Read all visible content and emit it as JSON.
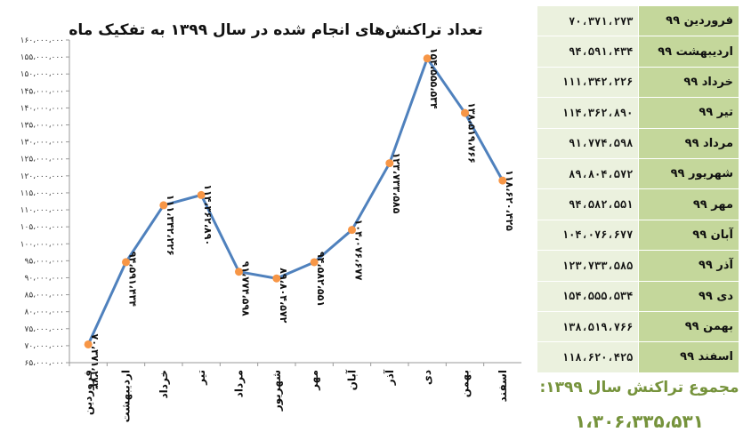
{
  "chart_data": {
    "type": "line",
    "title": "تعداد تراکنش‌های انجام شده در سال ۱۳۹۹ به تفکیک ماه",
    "categories": [
      "فروردین",
      "اردیبهشت",
      "خرداد",
      "تیر",
      "مرداد",
      "شهریور",
      "مهر",
      "آبان",
      "آذر",
      "دی",
      "بهمن",
      "اسفند"
    ],
    "series": [
      {
        "values": [
          70371273,
          94591434,
          111342226,
          114362890,
          91774598,
          89804572,
          94582551,
          104076677,
          123733585,
          154555534,
          138519766,
          118620425
        ]
      }
    ],
    "data_labels": [
      "۷۰،۳۷۱،۲۷۳",
      "۹۴،۵۹۱،۴۳۴",
      "۱۱۱،۳۴۲،۲۲۶",
      "۱۱۴،۳۶۲،۸۹۰",
      "۹۱،۷۷۴،۵۹۸",
      "۸۹،۸۰۴،۵۷۲",
      "۹۴،۵۸۲،۵۵۱",
      "۱۰۴،۰۷۶،۶۷۷",
      "۱۲۳،۷۳۳،۵۸۵",
      "۱۵۴،۵۵۵،۵۳۴",
      "۱۳۸،۵۱۹،۷۶۶",
      "۱۱۸،۶۲۰،۴۲۵"
    ],
    "ylim": [
      65000000,
      160000000
    ],
    "yticks": [
      65000000,
      70000000,
      75000000,
      80000000,
      85000000,
      90000000,
      95000000,
      100000000,
      105000000,
      110000000,
      115000000,
      120000000,
      125000000,
      130000000,
      135000000,
      140000000,
      145000000,
      150000000,
      155000000,
      160000000
    ],
    "ytick_labels": [
      "۶۵،۰۰۰،۰۰۰",
      "۷۰،۰۰۰،۰۰۰",
      "۷۵،۰۰۰،۰۰۰",
      "۸۰،۰۰۰،۰۰۰",
      "۸۵،۰۰۰،۰۰۰",
      "۹۰،۰۰۰،۰۰۰",
      "۹۵،۰۰۰،۰۰۰",
      "۱۰۰،۰۰۰،۰۰۰",
      "۱۰۵،۰۰۰،۰۰۰",
      "۱۱۰،۰۰۰،۰۰۰",
      "۱۱۵،۰۰۰،۰۰۰",
      "۱۲۰،۰۰۰،۰۰۰",
      "۱۲۵،۰۰۰،۰۰۰",
      "۱۳۰،۰۰۰،۰۰۰",
      "۱۳۵،۰۰۰،۰۰۰",
      "۱۴۰،۰۰۰،۰۰۰",
      "۱۴۵،۰۰۰،۰۰۰",
      "۱۵۰،۰۰۰،۰۰۰",
      "۱۵۵،۰۰۰،۰۰۰",
      "۱۶۰،۰۰۰،۰۰۰"
    ],
    "grid": false,
    "line_color": "#4f81bd",
    "marker_color": "#f79646"
  },
  "table": {
    "rows": [
      {
        "month": "فروردین ۹۹",
        "value": "۷۰،۳۷۱،۲۷۳"
      },
      {
        "month": "اردیبهشت ۹۹",
        "value": "۹۴،۵۹۱،۴۳۴"
      },
      {
        "month": "خرداد ۹۹",
        "value": "۱۱۱،۳۴۲،۲۲۶"
      },
      {
        "month": "تیر ۹۹",
        "value": "۱۱۴،۳۶۲،۸۹۰"
      },
      {
        "month": "مرداد ۹۹",
        "value": "۹۱،۷۷۴،۵۹۸"
      },
      {
        "month": "شهریور ۹۹",
        "value": "۸۹،۸۰۴،۵۷۲"
      },
      {
        "month": "مهر ۹۹",
        "value": "۹۴،۵۸۲،۵۵۱"
      },
      {
        "month": "آبان ۹۹",
        "value": "۱۰۴،۰۷۶،۶۷۷"
      },
      {
        "month": "آذر ۹۹",
        "value": "۱۲۳،۷۳۳،۵۸۵"
      },
      {
        "month": "دی ۹۹",
        "value": "۱۵۴،۵۵۵،۵۳۴"
      },
      {
        "month": "بهمن ۹۹",
        "value": "۱۳۸،۵۱۹،۷۶۶"
      },
      {
        "month": "اسفند ۹۹",
        "value": "۱۱۸،۶۲۰،۴۲۵"
      }
    ],
    "month_bg": "#c4d79b",
    "value_bg": "#ebf1de"
  },
  "total": {
    "label": "مجموع تراکنش سال ۱۳۹۹:",
    "value": "۱،۳۰۶،۳۳۵،۵۳۱",
    "color": "#76933c"
  }
}
